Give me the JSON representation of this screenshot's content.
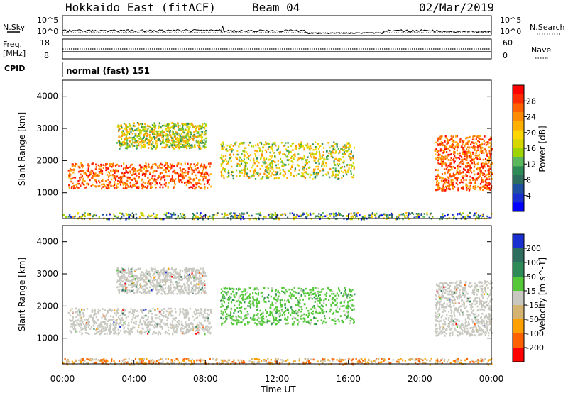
{
  "header": {
    "station": "Hokkaido East (fitACF)",
    "beam": "Beam 04",
    "date": "02/Mar/2019"
  },
  "strip": {
    "nsky_label": "N.Sky",
    "nsearch_label": "N.Search",
    "nsky_ticks": [
      "10^5",
      "10^0"
    ],
    "nsearch_ticks": [
      "10^5",
      "10^0"
    ],
    "freq_label": "Freq.",
    "freq_unit": "[MHz]",
    "freq_ticks": [
      "18",
      "8"
    ],
    "nave_label": "Nave",
    "nave_ticks": [
      "60",
      "0"
    ],
    "cpid_label": "CPID",
    "cpid_value": "normal (fast) 151"
  },
  "chart_data": [
    {
      "type": "heatmap",
      "panel": "power",
      "ylabel": "Slant Range [km]",
      "xlabel": "",
      "y_ticks": [
        "1000",
        "2000",
        "3000",
        "4000"
      ],
      "ylim": [
        200,
        4500
      ],
      "xlim": [
        0,
        24
      ],
      "colorbar": {
        "label": "Power [dB]",
        "ticks": [
          "28",
          "24",
          "20",
          "16",
          "12",
          "8",
          "4"
        ],
        "colors": [
          "#ff0000",
          "#ff2a00",
          "#ff6000",
          "#ff8c00",
          "#ffb000",
          "#ffd700",
          "#d6d600",
          "#9ed400",
          "#5cb85c",
          "#2e8b57",
          "#2e6e5e",
          "#1f4fa0",
          "#1a2fd0",
          "#0000ff"
        ]
      },
      "scatter_regions": [
        {
          "t0": 0.3,
          "t1": 8.3,
          "r0": 1150,
          "r1": 1950,
          "level": "high"
        },
        {
          "t0": 3.0,
          "t1": 8.0,
          "r0": 2400,
          "r1": 3200,
          "level": "mid"
        },
        {
          "t0": 8.8,
          "t1": 16.3,
          "r0": 1450,
          "r1": 2600,
          "level": "mid"
        },
        {
          "t0": 20.8,
          "t1": 24.0,
          "r0": 1100,
          "r1": 2800,
          "level": "high"
        },
        {
          "t0": 0.0,
          "t1": 24.0,
          "r0": 200,
          "r1": 400,
          "level": "low"
        }
      ]
    },
    {
      "type": "heatmap",
      "panel": "velocity",
      "ylabel": "Slant Range [km]",
      "xlabel": "Time UT",
      "y_ticks": [
        "1000",
        "2000",
        "3000",
        "4000"
      ],
      "x_ticks": [
        "00:00",
        "04:00",
        "08:00",
        "12:00",
        "16:00",
        "20:00",
        "00:00"
      ],
      "ylim": [
        200,
        4500
      ],
      "xlim": [
        0,
        24
      ],
      "colorbar": {
        "label": "Velocity [m s^-1]",
        "ticks": [
          "200",
          "100",
          "50",
          "15",
          "-15",
          "-50",
          "-100",
          "-200"
        ],
        "colors": [
          "#1a2fd0",
          "#2e6e5e",
          "#2e8b57",
          "#55c83a",
          "#c8c8c0",
          "#d4b470",
          "#ffa000",
          "#ff6000",
          "#ff0000"
        ]
      },
      "scatter_regions": [
        {
          "t0": 0.3,
          "t1": 8.3,
          "r0": 1150,
          "r1": 1950,
          "level": "ground"
        },
        {
          "t0": 3.0,
          "t1": 8.0,
          "r0": 2400,
          "r1": 3200,
          "level": "ground"
        },
        {
          "t0": 8.8,
          "t1": 16.3,
          "r0": 1450,
          "r1": 2600,
          "level": "positive"
        },
        {
          "t0": 20.8,
          "t1": 24.0,
          "r0": 1100,
          "r1": 2800,
          "level": "ground"
        },
        {
          "t0": 0.0,
          "t1": 24.0,
          "r0": 200,
          "r1": 400,
          "level": "mixed"
        }
      ]
    }
  ]
}
